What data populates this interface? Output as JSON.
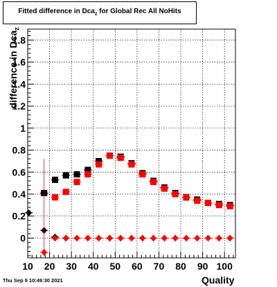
{
  "chart_data": {
    "type": "scatter",
    "title": "Fitted difference in Dca",
    "title_subscript": "z",
    "title_suffix": " for Global Rec All NoHits",
    "ylabel": "difference in Dca",
    "ylabel_subscript": "z",
    "xlabel": "Quality",
    "xlim": [
      10,
      105
    ],
    "ylim": [
      -0.18,
      1.9
    ],
    "x_ticks": [
      10,
      20,
      30,
      40,
      50,
      60,
      70,
      80,
      90,
      100
    ],
    "y_ticks": [
      0,
      0.2,
      0.4,
      0.6,
      0.8,
      1,
      1.2,
      1.4,
      1.6,
      1.8
    ],
    "y_tick_labels": [
      "0",
      "0.2",
      "0.4",
      "0.6",
      "0.8",
      "1",
      "1.2",
      "1.4",
      "1.6",
      "1.8"
    ],
    "grid": true,
    "series": [
      {
        "color": "#000000",
        "marker": "square",
        "x": [
          17.5,
          22.5,
          27.5,
          32.5,
          37.5,
          42.5,
          47.5,
          52.5,
          57.5,
          62.5,
          67.5,
          72.5,
          77.5,
          82.5,
          87.5,
          92.5,
          97.5,
          102.5
        ],
        "y": [
          0.41,
          0.53,
          0.57,
          0.58,
          0.62,
          0.7,
          0.75,
          0.74,
          0.68,
          0.59,
          0.52,
          0.46,
          0.41,
          0.37,
          0.35,
          0.32,
          0.31,
          0.3
        ]
      },
      {
        "color": "#ff0000",
        "marker": "square",
        "x": [
          22.5,
          27.5,
          32.5,
          37.5,
          42.5,
          47.5,
          52.5,
          57.5,
          62.5,
          67.5,
          72.5,
          77.5,
          82.5,
          87.5,
          92.5,
          97.5,
          102.5
        ],
        "y": [
          0.37,
          0.42,
          0.51,
          0.58,
          0.67,
          0.75,
          0.73,
          0.67,
          0.58,
          0.51,
          0.45,
          0.4,
          0.37,
          0.34,
          0.32,
          0.3,
          0.29
        ]
      },
      {
        "color": "#000000",
        "marker": "diamond",
        "x": [
          10.5,
          17.5,
          22.5,
          27.5,
          47.5
        ],
        "y": [
          0.23,
          0.07,
          0.01,
          0.0,
          0.0
        ]
      },
      {
        "color": "#ff0000",
        "marker": "diamond",
        "x": [
          17.5,
          22.5,
          27.5,
          32.5,
          37.5,
          42.5,
          47.5,
          52.5,
          57.5,
          62.5,
          67.5,
          72.5,
          77.5,
          82.5,
          87.5,
          92.5,
          97.5,
          102.5
        ],
        "y": [
          -0.13,
          0.0,
          0.0,
          0.0,
          0.0,
          0.0,
          0.0,
          0.0,
          0.0,
          0.0,
          0.0,
          0.0,
          0.0,
          0.0,
          0.0,
          0.0,
          0.0,
          0.0
        ],
        "y_err": [
          [
            17.5,
            -0.13,
            0.72
          ]
        ]
      }
    ]
  },
  "footer": {
    "timestamp": "Thu Sep  9 10:49:30 2021"
  }
}
